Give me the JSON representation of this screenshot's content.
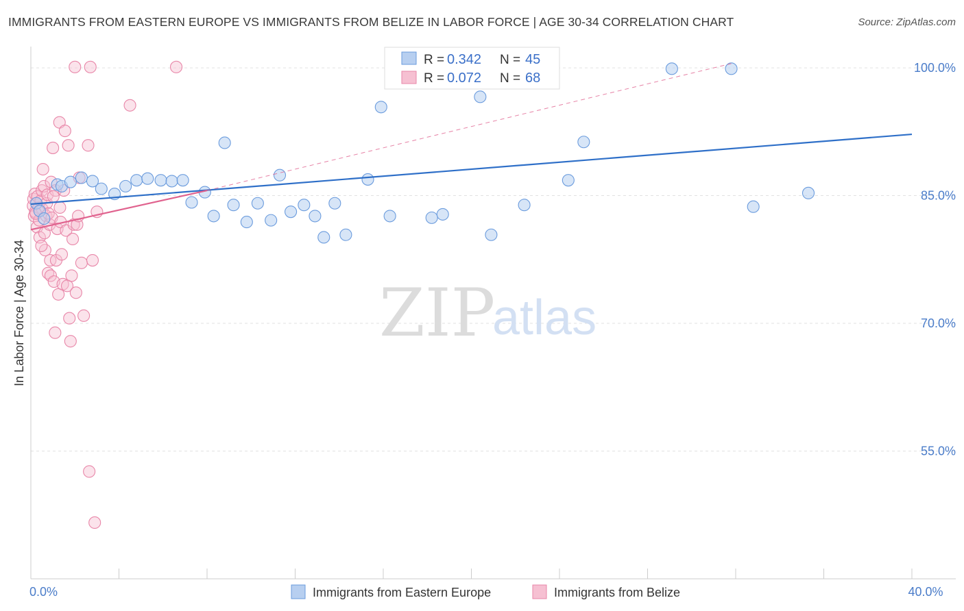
{
  "title": "IMMIGRANTS FROM EASTERN EUROPE VS IMMIGRANTS FROM BELIZE IN LABOR FORCE | AGE 30-34 CORRELATION CHART",
  "source": "Source: ZipAtlas.com",
  "watermark": {
    "zip": "ZIP",
    "atlas": "atlas"
  },
  "stats_box": {
    "rows": [
      {
        "r_label": "R =",
        "r_value": "0.342",
        "n_label": "N =",
        "n_value": "45"
      },
      {
        "r_label": "R =",
        "r_value": "0.072",
        "n_label": "N =",
        "n_value": "68"
      }
    ]
  },
  "legend": {
    "items": [
      {
        "label": "Immigrants from Eastern Europe"
      },
      {
        "label": "Immigrants from Belize"
      }
    ]
  },
  "colors": {
    "blue_fill": "#b7cff0",
    "blue_stroke": "#6a9bdd",
    "blue_line": "#2e6fc8",
    "pink_fill": "#f6c0d2",
    "pink_stroke": "#e886a8",
    "pink_line": "#e0628e",
    "grid": "#e2e2e2",
    "axis": "#cccccc",
    "tick_text": "#4a7cc9"
  },
  "chart_data": {
    "type": "scatter",
    "title": "IMMIGRANTS FROM EASTERN EUROPE VS IMMIGRANTS FROM BELIZE IN LABOR FORCE | AGE 30-34 CORRELATION CHART",
    "xlabel": "",
    "ylabel": "In Labor Force | Age 30-34",
    "xlim": [
      0,
      40
    ],
    "ylim": [
      40,
      102.5
    ],
    "x_tick_labels": [
      {
        "value": 0,
        "label": "0.0%"
      },
      {
        "value": 40,
        "label": "40.0%"
      }
    ],
    "y_tick_labels": [
      {
        "value": 100,
        "label": "100.0%"
      },
      {
        "value": 85,
        "label": "85.0%"
      },
      {
        "value": 70,
        "label": "70.0%"
      },
      {
        "value": 55,
        "label": "55.0%"
      }
    ],
    "series": [
      {
        "name": "Immigrants from Eastern Europe",
        "color": "blue",
        "points": [
          [
            0.25,
            84.1
          ],
          [
            0.4,
            83.2
          ],
          [
            0.6,
            82.3
          ],
          [
            1.2,
            86.3
          ],
          [
            1.4,
            86.1
          ],
          [
            1.8,
            86.6
          ],
          [
            2.3,
            87.1
          ],
          [
            2.8,
            86.7
          ],
          [
            3.2,
            85.8
          ],
          [
            3.8,
            85.2
          ],
          [
            4.3,
            86.1
          ],
          [
            4.8,
            86.8
          ],
          [
            5.3,
            87.0
          ],
          [
            5.9,
            86.8
          ],
          [
            6.4,
            86.7
          ],
          [
            6.9,
            86.8
          ],
          [
            7.3,
            84.2
          ],
          [
            7.9,
            85.4
          ],
          [
            8.3,
            82.6
          ],
          [
            8.8,
            91.2
          ],
          [
            9.2,
            83.9
          ],
          [
            9.8,
            81.9
          ],
          [
            10.3,
            84.1
          ],
          [
            10.9,
            82.1
          ],
          [
            11.3,
            87.4
          ],
          [
            11.8,
            83.1
          ],
          [
            12.4,
            83.9
          ],
          [
            12.9,
            82.6
          ],
          [
            13.3,
            80.1
          ],
          [
            13.8,
            84.1
          ],
          [
            14.3,
            80.4
          ],
          [
            15.3,
            86.9
          ],
          [
            15.9,
            95.4
          ],
          [
            16.3,
            82.6
          ],
          [
            18.2,
            82.4
          ],
          [
            18.7,
            82.8
          ],
          [
            20.4,
            96.6
          ],
          [
            20.9,
            80.4
          ],
          [
            22.4,
            83.9
          ],
          [
            24.4,
            86.8
          ],
          [
            25.1,
            91.3
          ],
          [
            29.1,
            99.9
          ],
          [
            31.8,
            99.9
          ],
          [
            32.8,
            83.7
          ],
          [
            35.3,
            85.3
          ]
        ],
        "trend": {
          "x": [
            0,
            40
          ],
          "y": [
            84.0,
            92.2
          ]
        }
      },
      {
        "name": "Immigrants from Belize",
        "color": "pink",
        "points": [
          [
            0.1,
            83.8
          ],
          [
            0.12,
            84.6
          ],
          [
            0.15,
            82.6
          ],
          [
            0.18,
            85.2
          ],
          [
            0.2,
            83.1
          ],
          [
            0.25,
            84.1
          ],
          [
            0.28,
            81.3
          ],
          [
            0.3,
            84.9
          ],
          [
            0.35,
            83.6
          ],
          [
            0.38,
            82.1
          ],
          [
            0.4,
            80.1
          ],
          [
            0.45,
            84.4
          ],
          [
            0.5,
            85.6
          ],
          [
            0.52,
            83.4
          ],
          [
            0.55,
            88.1
          ],
          [
            0.6,
            86.1
          ],
          [
            0.62,
            80.6
          ],
          [
            0.65,
            78.6
          ],
          [
            0.7,
            82.6
          ],
          [
            0.72,
            84.1
          ],
          [
            0.75,
            85.1
          ],
          [
            0.78,
            75.9
          ],
          [
            0.8,
            82.9
          ],
          [
            0.85,
            81.6
          ],
          [
            0.88,
            77.4
          ],
          [
            0.9,
            75.6
          ],
          [
            0.92,
            86.6
          ],
          [
            0.95,
            82.4
          ],
          [
            1.0,
            90.6
          ],
          [
            1.05,
            74.9
          ],
          [
            1.1,
            68.9
          ],
          [
            1.12,
            85.6
          ],
          [
            1.15,
            77.4
          ],
          [
            1.2,
            81.1
          ],
          [
            1.25,
            73.4
          ],
          [
            1.3,
            93.6
          ],
          [
            1.32,
            83.6
          ],
          [
            1.35,
            81.9
          ],
          [
            1.4,
            78.1
          ],
          [
            1.45,
            74.6
          ],
          [
            1.5,
            85.6
          ],
          [
            1.55,
            92.6
          ],
          [
            1.6,
            80.9
          ],
          [
            1.65,
            74.4
          ],
          [
            1.7,
            90.9
          ],
          [
            1.75,
            70.6
          ],
          [
            1.8,
            67.9
          ],
          [
            1.85,
            75.6
          ],
          [
            1.9,
            79.9
          ],
          [
            1.95,
            81.6
          ],
          [
            2.0,
            100.1
          ],
          [
            2.05,
            73.6
          ],
          [
            2.1,
            81.6
          ],
          [
            2.15,
            82.6
          ],
          [
            2.2,
            87.1
          ],
          [
            2.3,
            77.1
          ],
          [
            2.4,
            70.9
          ],
          [
            2.6,
            90.9
          ],
          [
            2.65,
            52.6
          ],
          [
            2.7,
            100.1
          ],
          [
            2.8,
            77.4
          ],
          [
            2.9,
            46.6
          ],
          [
            3.0,
            83.1
          ],
          [
            4.5,
            95.6
          ],
          [
            6.6,
            100.1
          ],
          [
            0.22,
            82.9
          ],
          [
            0.48,
            79.1
          ],
          [
            1.02,
            84.9
          ]
        ],
        "trend_solid": {
          "x": [
            0,
            8.0
          ],
          "y": [
            81.0,
            85.6
          ]
        },
        "trend_dashed": {
          "x": [
            8.0,
            31.8
          ],
          "y": [
            85.6,
            100.5
          ]
        }
      }
    ]
  }
}
